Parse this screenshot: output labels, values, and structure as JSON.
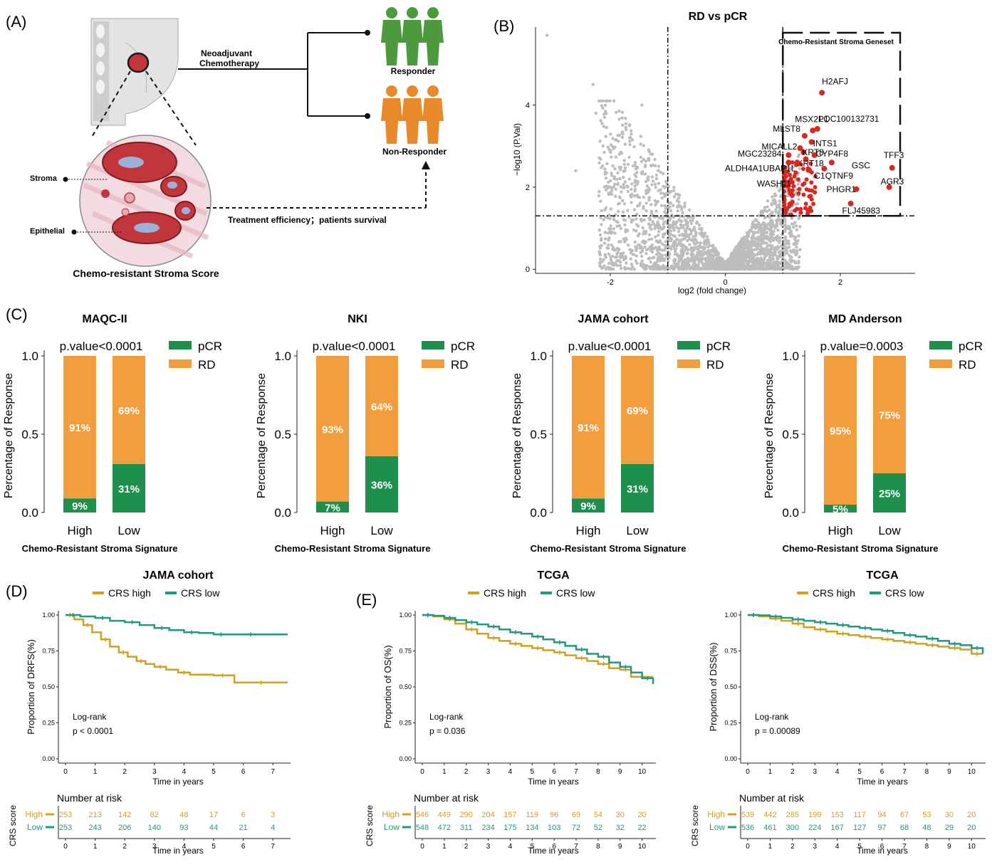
{
  "panel_labels": [
    "(A)",
    "(B)",
    "(C)",
    "(D)",
    "(E)"
  ],
  "panel_a": {
    "neoadjuvant": "Neoadjuvant",
    "chemotherapy": "Chemotherapy",
    "responder": "Responder",
    "non_responder": "Non-Responder",
    "stroma": "Stroma",
    "epithelial": "Epithelial",
    "treatment": "Treatment efficiency；patients survival",
    "score_title": "Chemo-resistant Stroma Score",
    "colors": {
      "responder": "#4d9a3e",
      "non_responder": "#e8892a",
      "tissue": "#c0363a"
    }
  },
  "chart_data": [
    {
      "type": "scatter",
      "title": "RD vs pCR",
      "xlabel": "log2 (fold change)",
      "ylabel": "−log10 (P.Val)",
      "xlim": [
        -3.3,
        3.3
      ],
      "ylim": [
        -0.1,
        5.9
      ],
      "xticks": [
        "-2",
        "0",
        "2"
      ],
      "yticks": [
        "0",
        "2",
        "4"
      ],
      "thresholds": {
        "x": [
          -1,
          1
        ],
        "y": 1.3
      },
      "box_label": "Chemo-Resistant Stroma Geneset",
      "colors": {
        "background": "#bdbdbd",
        "highlight": "#d42a22"
      },
      "highlighted": [
        {
          "label": "H2AFJ",
          "x": 1.68,
          "y": 4.3
        },
        {
          "label": "LOC100132731",
          "x": 1.6,
          "y": 3.42
        },
        {
          "label": "MSX2P1",
          "x": 1.52,
          "y": 3.38
        },
        {
          "label": "MLST8",
          "x": 1.38,
          "y": 3.25
        },
        {
          "label": "INTS1",
          "x": 1.5,
          "y": 3.1
        },
        {
          "label": "MICALL2",
          "x": 1.3,
          "y": 2.95
        },
        {
          "label": "KRT8",
          "x": 1.36,
          "y": 2.85
        },
        {
          "label": "CYP4F8",
          "x": 1.55,
          "y": 2.78
        },
        {
          "label": "TFF3",
          "x": 2.9,
          "y": 2.47
        },
        {
          "label": "MGC23284",
          "x": 1.1,
          "y": 2.78
        },
        {
          "label": "GSC",
          "x": 1.85,
          "y": 2.6
        },
        {
          "label": "KRT18",
          "x": 1.4,
          "y": 2.68
        },
        {
          "label": "ALDH4A1",
          "x": 1.1,
          "y": 2.6
        },
        {
          "label": "UBAP1L",
          "x": 1.25,
          "y": 2.6
        },
        {
          "label": "C1QTNF9",
          "x": 1.72,
          "y": 2.45
        },
        {
          "label": "AGR3",
          "x": 2.85,
          "y": 2.0
        },
        {
          "label": "WASH11",
          "x": 1.12,
          "y": 2.12
        },
        {
          "label": "PHGR1",
          "x": 2.28,
          "y": 1.95
        },
        {
          "label": "FLJ45983",
          "x": 2.18,
          "y": 1.6
        }
      ]
    },
    {
      "type": "bar",
      "stacked": true,
      "title": "MAQC-II",
      "pvalue": "p.value<0.0001",
      "categories": [
        "High",
        "Low"
      ],
      "xlabel": "Chemo-Resistant Stroma Signature",
      "ylabel": "Percentage of Response",
      "ylim": [
        0,
        1
      ],
      "yticks": [
        "0.0",
        "0.5",
        "1.0"
      ],
      "series": [
        {
          "name": "pCR",
          "values": [
            0.09,
            0.31
          ],
          "labels": [
            "9%",
            "31%"
          ],
          "color": "#1f8f4e"
        },
        {
          "name": "RD",
          "values": [
            0.91,
            0.69
          ],
          "labels": [
            "91%",
            "69%"
          ],
          "color": "#f29d3e"
        }
      ]
    },
    {
      "type": "bar",
      "stacked": true,
      "title": "NKI",
      "pvalue": "p.value<0.0001",
      "categories": [
        "High",
        "Low"
      ],
      "xlabel": "Chemo-Resistant Stroma Signature",
      "ylabel": "Percentage of Response",
      "ylim": [
        0,
        1
      ],
      "yticks": [
        "0.0",
        "0.5",
        "1.0"
      ],
      "series": [
        {
          "name": "pCR",
          "values": [
            0.07,
            0.36
          ],
          "labels": [
            "7%",
            "36%"
          ],
          "color": "#1f8f4e"
        },
        {
          "name": "RD",
          "values": [
            0.93,
            0.64
          ],
          "labels": [
            "93%",
            "64%"
          ],
          "color": "#f29d3e"
        }
      ]
    },
    {
      "type": "bar",
      "stacked": true,
      "title": "JAMA cohort",
      "pvalue": "p.value<0.0001",
      "categories": [
        "High",
        "Low"
      ],
      "xlabel": "Chemo-Resistant Stroma Signature",
      "ylabel": "Percentage of Response",
      "ylim": [
        0,
        1
      ],
      "yticks": [
        "0.0",
        "0.5",
        "1.0"
      ],
      "series": [
        {
          "name": "pCR",
          "values": [
            0.09,
            0.31
          ],
          "labels": [
            "9%",
            "31%"
          ],
          "color": "#1f8f4e"
        },
        {
          "name": "RD",
          "values": [
            0.91,
            0.69
          ],
          "labels": [
            "91%",
            "69%"
          ],
          "color": "#f29d3e"
        }
      ]
    },
    {
      "type": "bar",
      "stacked": true,
      "title": "MD Anderson",
      "pvalue": "p.value=0.0003",
      "categories": [
        "High",
        "Low"
      ],
      "xlabel": "Chemo-Resistant Stroma Signature",
      "ylabel": "Percentage of Response",
      "ylim": [
        0,
        1
      ],
      "yticks": [
        "0.0",
        "0.5",
        "1.0"
      ],
      "series": [
        {
          "name": "pCR",
          "values": [
            0.05,
            0.25
          ],
          "labels": [
            "5%",
            "25%"
          ],
          "color": "#1f8f4e"
        },
        {
          "name": "RD",
          "values": [
            0.95,
            0.75
          ],
          "labels": [
            "95%",
            "75%"
          ],
          "color": "#f29d3e"
        }
      ]
    },
    {
      "type": "line",
      "title": "JAMA cohort",
      "ylabel": "Proportion of DRFS(%)",
      "xlabel": "Time in years",
      "xlim": [
        0,
        7.5
      ],
      "ylim": [
        0,
        1
      ],
      "xticks": [
        "0",
        "1",
        "2",
        "3",
        "4",
        "5",
        "6",
        "7"
      ],
      "yticks": [
        "0.00",
        "0.25",
        "0.50",
        "0.75",
        "1.00"
      ],
      "stat_label": "Log-rank",
      "stat_value": "p < 0.0001",
      "risk_table": {
        "title": "Number at risk",
        "label": "CRS score",
        "times": [
          "0",
          "1",
          "2",
          "3",
          "4",
          "5",
          "6",
          "7"
        ],
        "rows": [
          {
            "name": "High",
            "counts": [
              "253",
              "213",
              "142",
              "82",
              "48",
              "17",
              "6",
              "3"
            ]
          },
          {
            "name": "Low",
            "counts": [
              "253",
              "243",
              "206",
              "140",
              "93",
              "44",
              "21",
              "4"
            ]
          }
        ]
      },
      "series": [
        {
          "name": "CRS high",
          "color": "#d4a017",
          "x": [
            0,
            0.3,
            0.6,
            0.9,
            1.2,
            1.5,
            1.8,
            2.1,
            2.4,
            2.7,
            3.0,
            3.4,
            3.8,
            4.2,
            5.0,
            5.6,
            5.7,
            7.5
          ],
          "y": [
            1.0,
            0.97,
            0.93,
            0.88,
            0.83,
            0.78,
            0.74,
            0.71,
            0.68,
            0.66,
            0.64,
            0.62,
            0.6,
            0.585,
            0.58,
            0.58,
            0.53,
            0.53
          ]
        },
        {
          "name": "CRS low",
          "color": "#1c9a82",
          "x": [
            0,
            0.5,
            1.0,
            1.5,
            2.0,
            2.5,
            3.0,
            3.5,
            4.0,
            4.5,
            5.0,
            5.5,
            6.0,
            6.5,
            7.5
          ],
          "y": [
            1.0,
            0.99,
            0.98,
            0.96,
            0.95,
            0.93,
            0.91,
            0.895,
            0.88,
            0.875,
            0.865,
            0.865,
            0.865,
            0.865,
            0.865
          ]
        }
      ]
    },
    {
      "type": "line",
      "title": "TCGA",
      "ylabel": "Proportion of OS(%)",
      "xlabel": "Time in years",
      "xlim": [
        0,
        10.5
      ],
      "ylim": [
        0,
        1
      ],
      "xticks": [
        "0",
        "1",
        "2",
        "3",
        "4",
        "5",
        "6",
        "7",
        "8",
        "9",
        "10"
      ],
      "yticks": [
        "0.00",
        "0.25",
        "0.50",
        "0.75",
        "1.00"
      ],
      "stat_label": "Log-rank",
      "stat_value": "p = 0.036",
      "risk_table": {
        "title": "Number at risk",
        "label": "CRS score",
        "times": [
          "0",
          "1",
          "2",
          "3",
          "4",
          "5",
          "6",
          "7",
          "8",
          "9",
          "10"
        ],
        "rows": [
          {
            "name": "High",
            "counts": [
              "546",
              "449",
              "290",
              "204",
              "157",
              "119",
              "96",
              "69",
              "54",
              "30",
              "20"
            ]
          },
          {
            "name": "Low",
            "counts": [
              "548",
              "472",
              "311",
              "234",
              "175",
              "134",
              "103",
              "72",
              "52",
              "32",
              "22"
            ]
          }
        ]
      },
      "series": [
        {
          "name": "CRS high",
          "color": "#d4a017",
          "x": [
            0,
            0.5,
            1.0,
            1.5,
            2.0,
            2.5,
            3.0,
            3.5,
            4.0,
            4.5,
            5.0,
            5.5,
            6.0,
            6.5,
            7.0,
            7.5,
            8.0,
            8.5,
            9.0,
            9.5,
            10.5
          ],
          "y": [
            1.0,
            0.99,
            0.97,
            0.94,
            0.9,
            0.87,
            0.84,
            0.82,
            0.8,
            0.785,
            0.77,
            0.755,
            0.74,
            0.72,
            0.7,
            0.68,
            0.66,
            0.63,
            0.62,
            0.57,
            0.57
          ]
        },
        {
          "name": "CRS low",
          "color": "#1c9a82",
          "x": [
            0,
            0.5,
            1.0,
            1.5,
            2.0,
            2.5,
            3.0,
            3.5,
            4.0,
            4.5,
            5.0,
            5.5,
            6.0,
            6.5,
            7.0,
            7.5,
            8.0,
            8.5,
            9.0,
            9.5,
            10.0,
            10.5
          ],
          "y": [
            1.0,
            0.995,
            0.98,
            0.965,
            0.95,
            0.935,
            0.92,
            0.9,
            0.88,
            0.87,
            0.85,
            0.83,
            0.81,
            0.785,
            0.76,
            0.73,
            0.71,
            0.67,
            0.64,
            0.6,
            0.56,
            0.52
          ]
        }
      ]
    },
    {
      "type": "line",
      "title": "TCGA",
      "ylabel": "Proportion of DSS(%)",
      "xlabel": "Time in years",
      "xlim": [
        0,
        10.5
      ],
      "ylim": [
        0,
        1
      ],
      "xticks": [
        "0",
        "1",
        "2",
        "3",
        "4",
        "5",
        "6",
        "7",
        "8",
        "9",
        "10"
      ],
      "yticks": [
        "0.00",
        "0.25",
        "0.50",
        "0.75",
        "1.00"
      ],
      "stat_label": "Log-rank",
      "stat_value": "p = 0.00089",
      "risk_table": {
        "title": "Number at risk",
        "label": "CRS score",
        "times": [
          "0",
          "1",
          "2",
          "3",
          "4",
          "5",
          "6",
          "7",
          "8",
          "9",
          "10"
        ],
        "rows": [
          {
            "name": "High",
            "counts": [
              "539",
              "442",
              "285",
              "199",
              "153",
              "117",
              "94",
              "67",
              "53",
              "30",
              "20"
            ]
          },
          {
            "name": "Low",
            "counts": [
              "536",
              "461",
              "300",
              "224",
              "167",
              "127",
              "97",
              "68",
              "48",
              "29",
              "20"
            ]
          }
        ]
      },
      "series": [
        {
          "name": "CRS high",
          "color": "#d4a017",
          "x": [
            0,
            0.5,
            1.0,
            1.5,
            2.0,
            2.5,
            3.0,
            3.5,
            4.0,
            4.5,
            5.0,
            5.5,
            6.0,
            6.5,
            7.0,
            7.5,
            8.0,
            8.5,
            9.0,
            9.5,
            10.0,
            10.5
          ],
          "y": [
            1.0,
            0.99,
            0.975,
            0.96,
            0.94,
            0.915,
            0.9,
            0.885,
            0.87,
            0.86,
            0.85,
            0.84,
            0.83,
            0.82,
            0.81,
            0.8,
            0.79,
            0.78,
            0.77,
            0.76,
            0.73,
            0.73
          ]
        },
        {
          "name": "CRS low",
          "color": "#1c9a82",
          "x": [
            0,
            0.5,
            1.0,
            1.5,
            2.0,
            2.5,
            3.0,
            3.5,
            4.0,
            4.5,
            5.0,
            5.5,
            6.0,
            6.5,
            7.0,
            7.5,
            8.0,
            8.5,
            9.0,
            9.5,
            10.0,
            10.5
          ],
          "y": [
            1.0,
            0.998,
            0.99,
            0.98,
            0.97,
            0.96,
            0.95,
            0.94,
            0.93,
            0.92,
            0.91,
            0.9,
            0.89,
            0.875,
            0.86,
            0.85,
            0.835,
            0.82,
            0.8,
            0.79,
            0.77,
            0.73
          ]
        }
      ]
    }
  ]
}
